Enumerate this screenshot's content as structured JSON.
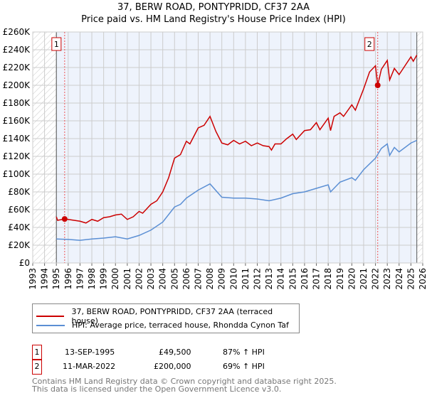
{
  "chart_data": {
    "type": "line",
    "title": "37, BERW ROAD, PONTYPRIDD, CF37 2AA",
    "subtitle": "Price paid vs. HM Land Registry's House Price Index (HPI)",
    "xlim": [
      1993,
      2026
    ],
    "ylim": [
      0,
      260000
    ],
    "x_ticks": [
      "1993",
      "1994",
      "1995",
      "1996",
      "1997",
      "1998",
      "1999",
      "2000",
      "2001",
      "2002",
      "2003",
      "2004",
      "2005",
      "2006",
      "2007",
      "2008",
      "2009",
      "2010",
      "2011",
      "2012",
      "2013",
      "2014",
      "2015",
      "2016",
      "2017",
      "2018",
      "2019",
      "2020",
      "2021",
      "2022",
      "2023",
      "2024",
      "2025",
      "2026"
    ],
    "y_ticks": [
      {
        "v": 0,
        "label": "£0"
      },
      {
        "v": 20000,
        "label": "£20K"
      },
      {
        "v": 40000,
        "label": "£40K"
      },
      {
        "v": 60000,
        "label": "£60K"
      },
      {
        "v": 80000,
        "label": "£80K"
      },
      {
        "v": 100000,
        "label": "£100K"
      },
      {
        "v": 120000,
        "label": "£120K"
      },
      {
        "v": 140000,
        "label": "£140K"
      },
      {
        "v": 160000,
        "label": "£160K"
      },
      {
        "v": 180000,
        "label": "£180K"
      },
      {
        "v": 200000,
        "label": "£200K"
      },
      {
        "v": 220000,
        "label": "£220K"
      },
      {
        "v": 240000,
        "label": "£240K"
      },
      {
        "v": 260000,
        "label": "£260K"
      }
    ],
    "data_range": [
      1995.0,
      2025.5
    ],
    "series": [
      {
        "name": "37, BERW ROAD, PONTYPRIDD, CF37 2AA (terraced house)",
        "color": "#cc0000",
        "x": [
          1995.0,
          1995.1,
          1995.7,
          1996,
          1997,
          1997.5,
          1998,
          1998.5,
          1999,
          1999.5,
          2000,
          2000.5,
          2001,
          2001.5,
          2002,
          2002.3,
          2003,
          2003.5,
          2004,
          2004.5,
          2005,
          2005.5,
          2006,
          2006.3,
          2007,
          2007.5,
          2008,
          2008.5,
          2009,
          2009.5,
          2010,
          2010.5,
          2011,
          2011.5,
          2012,
          2012.5,
          2013,
          2013.2,
          2013.5,
          2014,
          2014.5,
          2015,
          2015.3,
          2016,
          2016.5,
          2017,
          2017.3,
          2018,
          2018.2,
          2018.5,
          2019,
          2019.3,
          2020,
          2020.3,
          2021,
          2021.5,
          2022,
          2022.19,
          2022.5,
          2023,
          2023.2,
          2023.6,
          2024,
          2024.5,
          2025,
          2025.2,
          2025.5
        ],
        "y": [
          52000,
          48000,
          49500,
          49000,
          47000,
          45000,
          49000,
          47000,
          51000,
          52000,
          54000,
          55000,
          49000,
          52000,
          58000,
          56000,
          66000,
          70000,
          80000,
          96000,
          118000,
          122000,
          137000,
          134000,
          152000,
          155000,
          165000,
          148000,
          135000,
          133000,
          138000,
          134000,
          137000,
          132000,
          135000,
          132000,
          131000,
          127000,
          134000,
          134000,
          140000,
          145000,
          139000,
          149000,
          150000,
          158000,
          150000,
          163000,
          149000,
          165000,
          169000,
          165000,
          178000,
          172000,
          196000,
          215000,
          222000,
          200000,
          218000,
          228000,
          206000,
          219000,
          212000,
          222000,
          232000,
          227000,
          234000
        ]
      },
      {
        "name": "HPI: Average price, terraced house, Rhondda Cynon Taf",
        "color": "#5b8fd4",
        "x": [
          1995,
          1996,
          1997,
          1998,
          1999,
          2000,
          2001,
          2002,
          2003,
          2004,
          2005,
          2005.5,
          2006,
          2007,
          2008,
          2009,
          2010,
          2011,
          2012,
          2013,
          2014,
          2015,
          2016,
          2017,
          2018,
          2018.2,
          2019,
          2020,
          2020.3,
          2021,
          2022,
          2022.5,
          2023,
          2023.2,
          2023.6,
          2024,
          2025,
          2025.5
        ],
        "y": [
          27000,
          26500,
          25500,
          27000,
          28000,
          29500,
          27000,
          31000,
          37000,
          46000,
          63000,
          66000,
          73000,
          82000,
          89000,
          74000,
          73000,
          73000,
          72000,
          70000,
          73000,
          78000,
          80000,
          84000,
          88000,
          80000,
          91000,
          96000,
          93000,
          105000,
          118000,
          129000,
          134000,
          121000,
          130000,
          125000,
          135000,
          138000
        ]
      }
    ],
    "sales": [
      {
        "id": "1",
        "x": 1995.7,
        "y": 49500
      },
      {
        "id": "2",
        "x": 2022.19,
        "y": 200000
      }
    ]
  },
  "legend": {
    "property": "37, BERW ROAD, PONTYPRIDD, CF37 2AA (terraced house)",
    "hpi": "HPI: Average price, terraced house, Rhondda Cynon Taf"
  },
  "sales_table": [
    {
      "id": "1",
      "date": "13-SEP-1995",
      "price": "£49,500",
      "delta": "87% ↑ HPI"
    },
    {
      "id": "2",
      "date": "11-MAR-2022",
      "price": "£200,000",
      "delta": "69% ↑ HPI"
    }
  ],
  "footer": {
    "line1": "Contains HM Land Registry data © Crown copyright and database right 2025.",
    "line2": "This data is licensed under the Open Government Licence v3.0."
  }
}
